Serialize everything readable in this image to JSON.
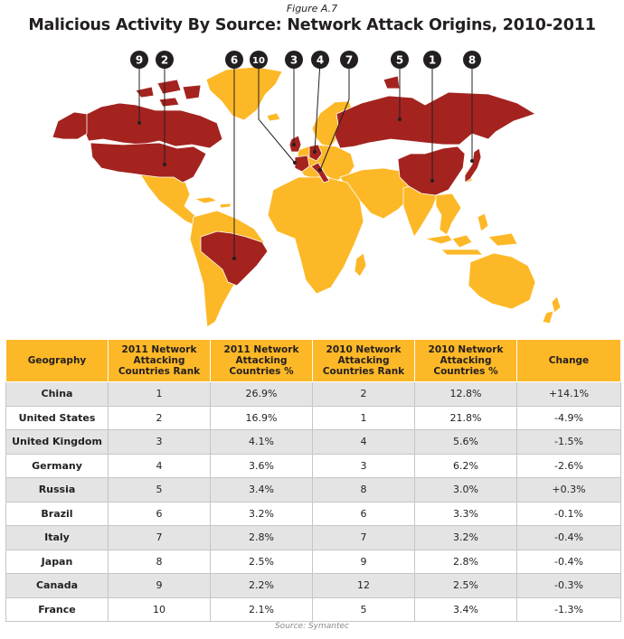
{
  "figure_label": "Figure A.7",
  "title": "Malicious Activity By Source: Network Attack Origins, 2010-2011",
  "colors": {
    "highlight": "#a4231f",
    "land": "#fdb827",
    "header": "#fdb827",
    "row_alt": "#e4e4e4"
  },
  "map_markers": [
    "9",
    "2",
    "6",
    "10",
    "3",
    "4",
    "7",
    "5",
    "1",
    "8"
  ],
  "table": {
    "headers": [
      "Geography",
      "2011 Network Attacking Countries Rank",
      "2011 Network Attacking Countries %",
      "2010 Network Attacking Countries Rank",
      "2010 Network Attacking Countries %",
      "Change"
    ],
    "rows": [
      [
        "China",
        "1",
        "26.9%",
        "2",
        "12.8%",
        "+14.1%"
      ],
      [
        "United States",
        "2",
        "16.9%",
        "1",
        "21.8%",
        "-4.9%"
      ],
      [
        "United Kingdom",
        "3",
        "4.1%",
        "4",
        "5.6%",
        "-1.5%"
      ],
      [
        "Germany",
        "4",
        "3.6%",
        "3",
        "6.2%",
        "-2.6%"
      ],
      [
        "Russia",
        "5",
        "3.4%",
        "8",
        "3.0%",
        "+0.3%"
      ],
      [
        "Brazil",
        "6",
        "3.2%",
        "6",
        "3.3%",
        "-0.1%"
      ],
      [
        "Italy",
        "7",
        "2.8%",
        "7",
        "3.2%",
        "-0.4%"
      ],
      [
        "Japan",
        "8",
        "2.5%",
        "9",
        "2.8%",
        "-0.4%"
      ],
      [
        "Canada",
        "9",
        "2.2%",
        "12",
        "2.5%",
        "-0.3%"
      ],
      [
        "France",
        "10",
        "2.1%",
        "5",
        "3.4%",
        "-1.3%"
      ]
    ]
  },
  "source": "Source: Symantec"
}
